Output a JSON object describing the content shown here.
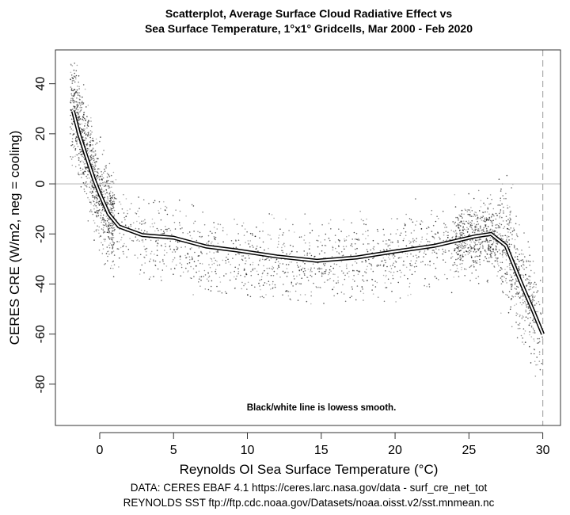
{
  "chart_data": {
    "type": "scatter",
    "title_lines": [
      "Scatterplot, Average Surface Cloud Radiative Effect vs",
      "Sea Surface Temperature, 1°x1° Gridcells, Mar 2000 - Feb 2020"
    ],
    "xlabel": "Reynolds OI Sea Surface Temperature (°C)",
    "ylabel": "CERES CRE (W/m2, neg = cooling)",
    "xlim": [
      -3,
      31.2
    ],
    "ylim": [
      -96.5,
      53.5
    ],
    "xticks": [
      0,
      5,
      10,
      15,
      20,
      25,
      30
    ],
    "yticks": [
      40,
      20,
      0,
      -20,
      -40,
      -60,
      -80
    ],
    "hline": 0,
    "vline_dashed": 30,
    "annotation": "Black/white line is lowess smooth.",
    "source_lines": [
      "DATA: CERES EBAF 4.1 https://ceres.larc.nasa.gov/data - surf_cre_net_tot",
      "REYNOLDS SST ftp://ftp.cdc.noaa.gov/Datasets/noaa.oisst.v2/sst.mnmean.nc"
    ],
    "lowess": {
      "x": [
        -1.8,
        -1.4,
        -0.85,
        -0.4,
        0,
        0.6,
        1.3,
        2.9,
        5,
        7.2,
        9.3,
        12,
        14.7,
        17.4,
        20,
        22.7,
        25.4,
        26.5,
        27.5,
        28.6,
        29.3,
        30
      ],
      "y": [
        29,
        20,
        10,
        2,
        -4,
        -12,
        -17,
        -20.5,
        -21.5,
        -25,
        -26.6,
        -29,
        -30.7,
        -29.4,
        -27,
        -24.7,
        -21,
        -20,
        -24.7,
        -40.5,
        -50,
        -60
      ]
    },
    "scatter_spread": {
      "note": "approx. cloud of gridcell points around the smooth",
      "x_range": [
        -2,
        30
      ],
      "y_range": [
        -95,
        50
      ]
    },
    "colors": {
      "points": "#000000",
      "smooth_outer": "#000000",
      "smooth_inner": "#ffffff",
      "zero_line": "#bbbbbb",
      "vline": "#aaaaaa"
    }
  }
}
